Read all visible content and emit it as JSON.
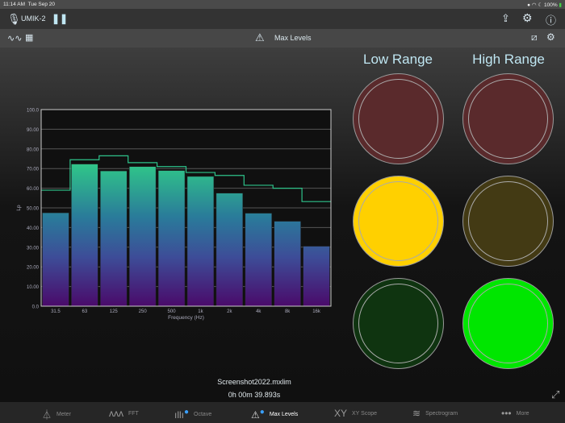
{
  "status": {
    "time": "11:14 AM",
    "date": "Tue Sep 20",
    "battery": "100%"
  },
  "toolbar": {
    "device": "UMIK-2"
  },
  "subbar": {
    "title": "Max Levels"
  },
  "ranges": {
    "low_label": "Low Range",
    "high_label": "High Range",
    "low": [
      {
        "color": "#5a2a2c",
        "lit": false
      },
      {
        "color": "#ffd000",
        "lit": true
      },
      {
        "color": "#0f3410",
        "lit": false
      }
    ],
    "high": [
      {
        "color": "#5a2a2c",
        "lit": false
      },
      {
        "color": "#433a14",
        "lit": false
      },
      {
        "color": "#00e600",
        "lit": true
      }
    ]
  },
  "recording": {
    "file": "Screenshot2022.mxlim",
    "elapsed": "0h 00m 39.893s"
  },
  "tabs": [
    {
      "label": "Meter",
      "icon": "flask-icon"
    },
    {
      "label": "FFT",
      "icon": "fft-icon"
    },
    {
      "label": "Octave",
      "icon": "octave-icon"
    },
    {
      "label": "Max Levels",
      "icon": "warning-icon"
    },
    {
      "label": "XY Scope",
      "icon": "xy-icon"
    },
    {
      "label": "Spectrogram",
      "icon": "spectrogram-icon"
    },
    {
      "label": "More",
      "icon": "more-icon"
    }
  ],
  "chart_data": {
    "type": "bar",
    "xlabel": "Frequency (Hz)",
    "ylabel": "Lp",
    "ylim": [
      0,
      100
    ],
    "yticks": [
      "0.0",
      "10.00",
      "20.00",
      "30.00",
      "40.00",
      "50.00",
      "60.00",
      "70.00",
      "80.00",
      "90.00",
      "100.0"
    ],
    "categories": [
      "31.5",
      "63",
      "125",
      "250",
      "500",
      "1k",
      "2k",
      "4k",
      "8k",
      "16k"
    ],
    "series": [
      {
        "type": "bar",
        "values": [
          47.5,
          72.3,
          68.8,
          71.0,
          69.0,
          66.0,
          57.5,
          47.3,
          43.2,
          30.5
        ]
      },
      {
        "type": "step",
        "values": [
          59.0,
          74.5,
          76.5,
          73.0,
          71.0,
          68.0,
          66.5,
          61.5,
          60.0,
          53.2
        ],
        "color": "#2ec28a"
      }
    ],
    "grid": true
  }
}
